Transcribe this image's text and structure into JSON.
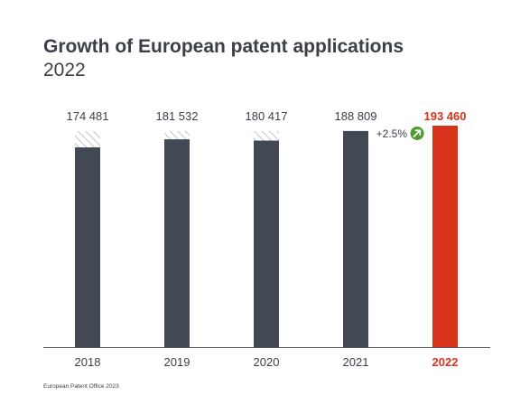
{
  "title": "Growth of European patent applications",
  "subtitle": "2022",
  "footer": "European Patent Office 2023",
  "colors": {
    "bar_default": "#424955",
    "bar_highlight": "#d8331b",
    "hatch": "#c9c9c9",
    "growth_badge": "#4d9b2e",
    "text": "#3b3f48",
    "axis": "#555555"
  },
  "chart_data": {
    "type": "bar",
    "categories": [
      "2018",
      "2019",
      "2020",
      "2021",
      "2022"
    ],
    "values": [
      174481,
      181532,
      180417,
      188809,
      193460
    ],
    "value_labels": [
      "174 481",
      "181 532",
      "180 417",
      "188 809",
      "193 460"
    ],
    "highlight_index": 4,
    "hatched_reference_value": 188809,
    "annotation": {
      "text": "+2.5%",
      "icon": "arrow-up-right-icon"
    },
    "title": "Growth of European patent applications",
    "subtitle": "2022",
    "xlabel": "",
    "ylabel": "",
    "ylim": [
      0,
      193460
    ],
    "grid": false,
    "legend": "none"
  }
}
